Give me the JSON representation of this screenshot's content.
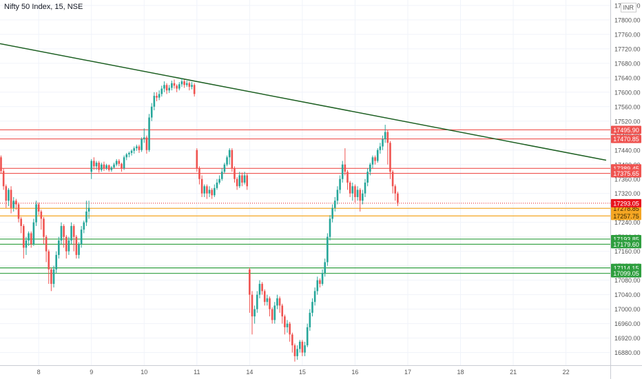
{
  "header": {
    "symbol_title": "Nifty 50 Index, 15, NSE",
    "currency": "INR"
  },
  "colors": {
    "bull": "#26a69a",
    "bear": "#ef5350",
    "trendline": "#1b5e20",
    "red_level": "#ef5350",
    "orange_level": "#f5a623",
    "green_level": "#2e9e3e",
    "current_price": "#e8141f",
    "grid": "#f0f3fa",
    "axis_text": "#555555"
  },
  "chart_data": {
    "type": "candlestick",
    "title": "Nifty 50 Index, 15, NSE",
    "ylim": [
      16845,
      17855
    ],
    "yticks": [
      "16880.00",
      "16920.00",
      "16960.00",
      "17000.00",
      "17040.00",
      "17080.00",
      "17120.00",
      "17160.00",
      "17200.00",
      "17240.00",
      "17280.00",
      "17320.00",
      "17360.00",
      "17400.00",
      "17440.00",
      "17480.00",
      "17520.00",
      "17560.00",
      "17600.00",
      "17640.00",
      "17680.00",
      "17720.00",
      "17760.00",
      "17800.00",
      "17840.00"
    ],
    "xticks": [
      {
        "label": "8",
        "i": 15
      },
      {
        "label": "9",
        "i": 36
      },
      {
        "label": "10",
        "i": 57
      },
      {
        "label": "11",
        "i": 78
      },
      {
        "label": "14",
        "i": 99
      },
      {
        "label": "15",
        "i": 120
      },
      {
        "label": "16",
        "i": 141
      },
      {
        "label": "17",
        "i": 162
      },
      {
        "label": "18",
        "i": 183
      },
      {
        "label": "21",
        "i": 204
      },
      {
        "label": "22",
        "i": 225
      }
    ],
    "level_lines": [
      {
        "label": "17495.90",
        "value": 17495.9,
        "kind": "red"
      },
      {
        "label": "17470.85",
        "value": 17470.85,
        "kind": "red"
      },
      {
        "label": "17389.45",
        "value": 17389.45,
        "kind": "red"
      },
      {
        "label": "17375.65",
        "value": 17375.65,
        "kind": "red"
      },
      {
        "label": "17278.85",
        "value": 17278.85,
        "kind": "orange"
      },
      {
        "label": "17257.75",
        "value": 17257.75,
        "kind": "orange"
      },
      {
        "label": "17193.85",
        "value": 17193.85,
        "kind": "green"
      },
      {
        "label": "17179.60",
        "value": 17179.6,
        "kind": "green"
      },
      {
        "label": "17114.15",
        "value": 17114.15,
        "kind": "green"
      },
      {
        "label": "17099.05",
        "value": 17099.05,
        "kind": "green"
      }
    ],
    "current_price": {
      "label": "17293.05",
      "value": 17293.05
    },
    "trendline": {
      "start": {
        "i": -1,
        "value": 17735
      },
      "end": {
        "i": 241,
        "value": 17412
      }
    },
    "candles": [
      [
        17420,
        17382,
        17425,
        17375
      ],
      [
        17382,
        17340,
        17390,
        17330
      ],
      [
        17340,
        17300,
        17345,
        17280
      ],
      [
        17300,
        17330,
        17335,
        17285
      ],
      [
        17330,
        17280,
        17340,
        17265
      ],
      [
        17280,
        17300,
        17310,
        17270
      ],
      [
        17300,
        17290,
        17305,
        17275
      ],
      [
        17290,
        17250,
        17295,
        17240
      ],
      [
        17250,
        17230,
        17255,
        17210
      ],
      [
        17230,
        17170,
        17235,
        17140
      ],
      [
        17170,
        17190,
        17200,
        17150
      ],
      [
        17190,
        17210,
        17215,
        17175
      ],
      [
        17210,
        17180,
        17215,
        17170
      ],
      [
        17180,
        17240,
        17250,
        17175
      ],
      [
        17240,
        17290,
        17300,
        17230
      ],
      [
        17290,
        17270,
        17295,
        17260
      ],
      [
        17270,
        17250,
        17275,
        17220
      ],
      [
        17250,
        17200,
        17255,
        17180
      ],
      [
        17200,
        17160,
        17205,
        17130
      ],
      [
        17160,
        17110,
        17165,
        17070
      ],
      [
        17110,
        17070,
        17115,
        17050
      ],
      [
        17070,
        17110,
        17120,
        17060
      ],
      [
        17110,
        17150,
        17160,
        17100
      ],
      [
        17150,
        17190,
        17200,
        17140
      ],
      [
        17190,
        17230,
        17240,
        17180
      ],
      [
        17230,
        17200,
        17235,
        17170
      ],
      [
        17200,
        17160,
        17205,
        17140
      ],
      [
        17160,
        17190,
        17200,
        17150
      ],
      [
        17190,
        17230,
        17240,
        17180
      ],
      [
        17230,
        17200,
        17235,
        17160
      ],
      [
        17200,
        17150,
        17205,
        17140
      ],
      [
        17150,
        17180,
        17185,
        17140
      ],
      [
        17180,
        17220,
        17230,
        17170
      ],
      [
        17220,
        17240,
        17245,
        17210
      ],
      [
        17240,
        17270,
        17300,
        17230
      ],
      [
        17270,
        17280,
        17300,
        17250
      ],
      [
        17380,
        17410,
        17415,
        17360
      ],
      [
        17410,
        17395,
        17420,
        17385
      ],
      [
        17395,
        17405,
        17410,
        17385
      ],
      [
        17405,
        17385,
        17410,
        17378
      ],
      [
        17385,
        17400,
        17405,
        17380
      ],
      [
        17400,
        17390,
        17408,
        17382
      ],
      [
        17390,
        17398,
        17402,
        17385
      ],
      [
        17398,
        17385,
        17400,
        17380
      ],
      [
        17385,
        17392,
        17396,
        17380
      ],
      [
        17392,
        17400,
        17405,
        17388
      ],
      [
        17400,
        17410,
        17415,
        17395
      ],
      [
        17410,
        17402,
        17415,
        17395
      ],
      [
        17402,
        17390,
        17405,
        17380
      ],
      [
        17390,
        17420,
        17425,
        17385
      ],
      [
        17420,
        17428,
        17432,
        17412
      ],
      [
        17428,
        17432,
        17436,
        17420
      ],
      [
        17432,
        17438,
        17442,
        17425
      ],
      [
        17438,
        17445,
        17450,
        17430
      ],
      [
        17445,
        17450,
        17455,
        17438
      ],
      [
        17450,
        17440,
        17455,
        17432
      ],
      [
        17440,
        17470,
        17475,
        17435
      ],
      [
        17470,
        17475,
        17500,
        17460
      ],
      [
        17475,
        17440,
        17480,
        17430
      ],
      [
        17440,
        17530,
        17540,
        17435
      ],
      [
        17530,
        17560,
        17570,
        17520
      ],
      [
        17560,
        17590,
        17600,
        17550
      ],
      [
        17590,
        17585,
        17600,
        17575
      ],
      [
        17585,
        17595,
        17605,
        17578
      ],
      [
        17595,
        17610,
        17618,
        17588
      ],
      [
        17610,
        17620,
        17630,
        17600
      ],
      [
        17620,
        17605,
        17625,
        17595
      ],
      [
        17605,
        17612,
        17620,
        17598
      ],
      [
        17612,
        17625,
        17632,
        17605
      ],
      [
        17625,
        17618,
        17635,
        17610
      ],
      [
        17618,
        17610,
        17622,
        17600
      ],
      [
        17610,
        17622,
        17628,
        17605
      ],
      [
        17622,
        17630,
        17638,
        17615
      ],
      [
        17630,
        17620,
        17635,
        17612
      ],
      [
        17620,
        17625,
        17632,
        17615
      ],
      [
        17625,
        17615,
        17630,
        17605
      ],
      [
        17615,
        17620,
        17628,
        17608
      ],
      [
        17620,
        17595,
        17625,
        17588
      ],
      [
        17440,
        17390,
        17445,
        17380
      ],
      [
        17390,
        17360,
        17395,
        17345
      ],
      [
        17360,
        17320,
        17370,
        17310
      ],
      [
        17320,
        17340,
        17345,
        17310
      ],
      [
        17340,
        17320,
        17345,
        17305
      ],
      [
        17320,
        17330,
        17340,
        17310
      ],
      [
        17330,
        17315,
        17335,
        17305
      ],
      [
        17315,
        17335,
        17345,
        17310
      ],
      [
        17335,
        17350,
        17360,
        17330
      ],
      [
        17350,
        17360,
        17370,
        17345
      ],
      [
        17360,
        17380,
        17390,
        17355
      ],
      [
        17380,
        17400,
        17405,
        17375
      ],
      [
        17400,
        17420,
        17425,
        17395
      ],
      [
        17420,
        17440,
        17445,
        17400
      ],
      [
        17440,
        17390,
        17445,
        17380
      ],
      [
        17390,
        17360,
        17395,
        17350
      ],
      [
        17360,
        17340,
        17365,
        17330
      ],
      [
        17340,
        17370,
        17380,
        17335
      ],
      [
        17370,
        17350,
        17378,
        17340
      ],
      [
        17350,
        17370,
        17380,
        17345
      ],
      [
        17370,
        17340,
        17375,
        17330
      ],
      [
        17110,
        17040,
        17115,
        16990
      ],
      [
        17040,
        16980,
        17050,
        16930
      ],
      [
        16980,
        17000,
        17010,
        16960
      ],
      [
        17000,
        17040,
        17050,
        16990
      ],
      [
        17040,
        17070,
        17080,
        17030
      ],
      [
        17070,
        17050,
        17075,
        17040
      ],
      [
        17050,
        17020,
        17055,
        17010
      ],
      [
        17020,
        17030,
        17040,
        17010
      ],
      [
        17030,
        17000,
        17035,
        16980
      ],
      [
        17000,
        16970,
        17005,
        16960
      ],
      [
        16970,
        17010,
        17020,
        16960
      ],
      [
        17010,
        17030,
        17040,
        17000
      ],
      [
        17030,
        17010,
        17035,
        16990
      ],
      [
        17010,
        16980,
        17015,
        16960
      ],
      [
        16980,
        16950,
        16985,
        16930
      ],
      [
        16950,
        16960,
        16970,
        16935
      ],
      [
        16960,
        16930,
        16965,
        16910
      ],
      [
        16930,
        16900,
        16935,
        16880
      ],
      [
        16900,
        16870,
        16905,
        16855
      ],
      [
        16870,
        16890,
        16900,
        16860
      ],
      [
        16890,
        16910,
        16915,
        16880
      ],
      [
        16910,
        16880,
        16915,
        16870
      ],
      [
        16880,
        16900,
        16910,
        16870
      ],
      [
        16900,
        16950,
        16960,
        16895
      ],
      [
        16950,
        16990,
        17000,
        16940
      ],
      [
        16990,
        17020,
        17030,
        16980
      ],
      [
        17020,
        17050,
        17060,
        17010
      ],
      [
        17050,
        17080,
        17090,
        17040
      ],
      [
        17080,
        17070,
        17085,
        17060
      ],
      [
        17070,
        17100,
        17110,
        17065
      ],
      [
        17100,
        17130,
        17140,
        17090
      ],
      [
        17130,
        17200,
        17210,
        17120
      ],
      [
        17200,
        17250,
        17260,
        17190
      ],
      [
        17250,
        17280,
        17290,
        17240
      ],
      [
        17280,
        17300,
        17310,
        17270
      ],
      [
        17300,
        17330,
        17340,
        17290
      ],
      [
        17330,
        17360,
        17370,
        17320
      ],
      [
        17360,
        17400,
        17410,
        17350
      ],
      [
        17400,
        17380,
        17445,
        17370
      ],
      [
        17380,
        17350,
        17385,
        17330
      ],
      [
        17350,
        17320,
        17355,
        17310
      ],
      [
        17320,
        17340,
        17350,
        17300
      ],
      [
        17340,
        17310,
        17345,
        17295
      ],
      [
        17310,
        17330,
        17340,
        17300
      ],
      [
        17330,
        17300,
        17335,
        17270
      ],
      [
        17300,
        17320,
        17330,
        17290
      ],
      [
        17320,
        17350,
        17360,
        17310
      ],
      [
        17350,
        17380,
        17390,
        17340
      ],
      [
        17380,
        17400,
        17405,
        17370
      ],
      [
        17400,
        17420,
        17425,
        17390
      ],
      [
        17420,
        17410,
        17425,
        17400
      ],
      [
        17410,
        17440,
        17445,
        17405
      ],
      [
        17440,
        17450,
        17460,
        17430
      ],
      [
        17450,
        17470,
        17480,
        17440
      ],
      [
        17470,
        17490,
        17510,
        17460
      ],
      [
        17490,
        17460,
        17495,
        17400
      ],
      [
        17460,
        17380,
        17465,
        17360
      ],
      [
        17380,
        17340,
        17385,
        17320
      ],
      [
        17340,
        17320,
        17345,
        17300
      ],
      [
        17320,
        17295,
        17325,
        17285
      ]
    ]
  }
}
